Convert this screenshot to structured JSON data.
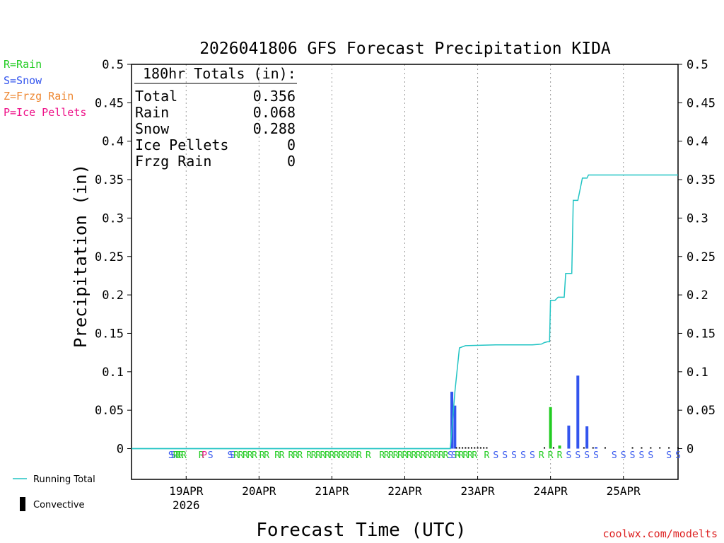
{
  "chart_data": {
    "type": "bar",
    "title": "2026041806 GFS Forecast Precipitation KIDA",
    "xlabel": "Forecast Time (UTC)",
    "ylabel": "Precipitation (in)",
    "ylim": [
      -0.04,
      0.5
    ],
    "y_ticks": [
      0,
      0.05,
      0.1,
      0.15,
      0.2,
      0.25,
      0.3,
      0.35,
      0.4,
      0.45,
      0.5
    ],
    "y_tick_labels": [
      "0",
      "0.05",
      "0.1",
      "0.15",
      "0.2",
      "0.25",
      "0.3",
      "0.35",
      "0.4",
      "0.45",
      "0.5"
    ],
    "x_unit": "forecast hour",
    "xlim": [
      0,
      180
    ],
    "x_ticks": [
      {
        "hour": 18,
        "label": "19APR",
        "sublabel": "2026"
      },
      {
        "hour": 42,
        "label": "20APR",
        "sublabel": ""
      },
      {
        "hour": 66,
        "label": "21APR",
        "sublabel": ""
      },
      {
        "hour": 90,
        "label": "22APR",
        "sublabel": ""
      },
      {
        "hour": 114,
        "label": "23APR",
        "sublabel": ""
      },
      {
        "hour": 138,
        "label": "24APR",
        "sublabel": ""
      },
      {
        "hour": 162,
        "label": "25APR",
        "sublabel": ""
      }
    ],
    "legend": [
      {
        "label": "R=Rain",
        "color": "#22cc22"
      },
      {
        "label": "S=Snow",
        "color": "#3355ee"
      },
      {
        "label": "Z=Frzg Rain",
        "color": "#ee8833"
      },
      {
        "label": "P=Ice Pellets",
        "color": "#ee1188"
      }
    ],
    "bottom_legend": {
      "running_total": "Running Total",
      "convective": "Convective"
    },
    "totals_box": {
      "heading": "180hr Totals (in):",
      "rows": [
        {
          "label": "Total",
          "value": "0.356"
        },
        {
          "label": "Rain",
          "value": "0.068"
        },
        {
          "label": "Snow",
          "value": "0.288"
        },
        {
          "label": "Ice Pellets",
          "value": "0"
        },
        {
          "label": "Frzg Rain",
          "value": "0"
        }
      ]
    },
    "bars": [
      {
        "hour": 105.5,
        "value": 0.074,
        "type": "snow"
      },
      {
        "hour": 106.5,
        "value": 0.056,
        "type": "snow"
      },
      {
        "hour": 138,
        "value": 0.054,
        "type": "rain"
      },
      {
        "hour": 141,
        "value": 0.004,
        "type": "rain"
      },
      {
        "hour": 144,
        "value": 0.03,
        "type": "snow"
      },
      {
        "hour": 147,
        "value": 0.095,
        "type": "snow"
      },
      {
        "hour": 150,
        "value": 0.029,
        "type": "snow"
      },
      {
        "hour": 153,
        "value": 0.002,
        "type": "snow"
      }
    ],
    "running_total": {
      "hours": [
        0,
        105,
        106.5,
        108,
        110,
        120,
        132,
        135,
        136,
        137,
        137.7,
        138,
        139.5,
        140.5,
        142.5,
        143,
        145,
        145.5,
        147,
        148.5,
        150,
        150.5,
        180
      ],
      "values": [
        0,
        0,
        0.074,
        0.131,
        0.134,
        0.135,
        0.135,
        0.136,
        0.138,
        0.139,
        0.139,
        0.193,
        0.193,
        0.197,
        0.197,
        0.228,
        0.228,
        0.323,
        0.323,
        0.352,
        0.352,
        0.356,
        0.356
      ]
    },
    "type_markers": [
      {
        "hour": 13,
        "code": "S"
      },
      {
        "hour": 13.8,
        "code": "S"
      },
      {
        "hour": 14.6,
        "code": "R"
      },
      {
        "hour": 15.4,
        "code": "R"
      },
      {
        "hour": 16.2,
        "code": "R"
      },
      {
        "hour": 17.2,
        "code": "R"
      },
      {
        "hour": 23,
        "code": "R"
      },
      {
        "hour": 24,
        "code": "P"
      },
      {
        "hour": 26,
        "code": "S"
      },
      {
        "hour": 32.5,
        "code": "S"
      },
      {
        "hour": 33.3,
        "code": "S"
      },
      {
        "hour": 34.5,
        "code": "R"
      },
      {
        "hour": 36,
        "code": "R"
      },
      {
        "hour": 37.5,
        "code": "R"
      },
      {
        "hour": 39,
        "code": "R"
      },
      {
        "hour": 40.5,
        "code": "R"
      },
      {
        "hour": 43,
        "code": "R"
      },
      {
        "hour": 44.5,
        "code": "R"
      },
      {
        "hour": 48,
        "code": "R"
      },
      {
        "hour": 49.5,
        "code": "R"
      },
      {
        "hour": 52.5,
        "code": "R"
      },
      {
        "hour": 54,
        "code": "R"
      },
      {
        "hour": 55.5,
        "code": "R"
      },
      {
        "hour": 58.5,
        "code": "R"
      },
      {
        "hour": 60,
        "code": "R"
      },
      {
        "hour": 61.5,
        "code": "R"
      },
      {
        "hour": 63,
        "code": "R"
      },
      {
        "hour": 64.5,
        "code": "R"
      },
      {
        "hour": 66,
        "code": "R"
      },
      {
        "hour": 67.5,
        "code": "R"
      },
      {
        "hour": 69,
        "code": "R"
      },
      {
        "hour": 70.5,
        "code": "R"
      },
      {
        "hour": 72,
        "code": "R"
      },
      {
        "hour": 73.5,
        "code": "R"
      },
      {
        "hour": 75,
        "code": "R"
      },
      {
        "hour": 78,
        "code": "R"
      },
      {
        "hour": 82.5,
        "code": "R"
      },
      {
        "hour": 84,
        "code": "R"
      },
      {
        "hour": 85.5,
        "code": "R"
      },
      {
        "hour": 87,
        "code": "R"
      },
      {
        "hour": 88.5,
        "code": "R"
      },
      {
        "hour": 90,
        "code": "R"
      },
      {
        "hour": 91.5,
        "code": "R"
      },
      {
        "hour": 93,
        "code": "R"
      },
      {
        "hour": 94.5,
        "code": "R"
      },
      {
        "hour": 96,
        "code": "R"
      },
      {
        "hour": 97.5,
        "code": "R"
      },
      {
        "hour": 99,
        "code": "R"
      },
      {
        "hour": 100.5,
        "code": "R"
      },
      {
        "hour": 102,
        "code": "R"
      },
      {
        "hour": 103.5,
        "code": "R"
      },
      {
        "hour": 105,
        "code": "S"
      },
      {
        "hour": 106.2,
        "code": "S"
      },
      {
        "hour": 107.4,
        "code": "R"
      },
      {
        "hour": 108.6,
        "code": "R"
      },
      {
        "hour": 110,
        "code": "R"
      },
      {
        "hour": 111.5,
        "code": "R"
      },
      {
        "hour": 113,
        "code": "R"
      },
      {
        "hour": 117,
        "code": "R"
      },
      {
        "hour": 120,
        "code": "S"
      },
      {
        "hour": 123,
        "code": "S"
      },
      {
        "hour": 126,
        "code": "S"
      },
      {
        "hour": 129,
        "code": "S"
      },
      {
        "hour": 132,
        "code": "S"
      },
      {
        "hour": 135,
        "code": "R"
      },
      {
        "hour": 138,
        "code": "R"
      },
      {
        "hour": 141,
        "code": "R"
      },
      {
        "hour": 144,
        "code": "S"
      },
      {
        "hour": 147,
        "code": "S"
      },
      {
        "hour": 150,
        "code": "S"
      },
      {
        "hour": 153,
        "code": "S"
      },
      {
        "hour": 159,
        "code": "S"
      },
      {
        "hour": 162,
        "code": "S"
      },
      {
        "hour": 165,
        "code": "S"
      },
      {
        "hour": 168,
        "code": "S"
      },
      {
        "hour": 171,
        "code": "S"
      },
      {
        "hour": 177,
        "code": "S"
      },
      {
        "hour": 180,
        "code": "S"
      }
    ],
    "colors": {
      "rain": "#22cc22",
      "snow": "#3355ee",
      "frzg": "#ee8833",
      "ice": "#ee1188",
      "running_total": "#22c4c4",
      "convective": "#000000"
    }
  },
  "credit": "coolwx.com/modelts"
}
